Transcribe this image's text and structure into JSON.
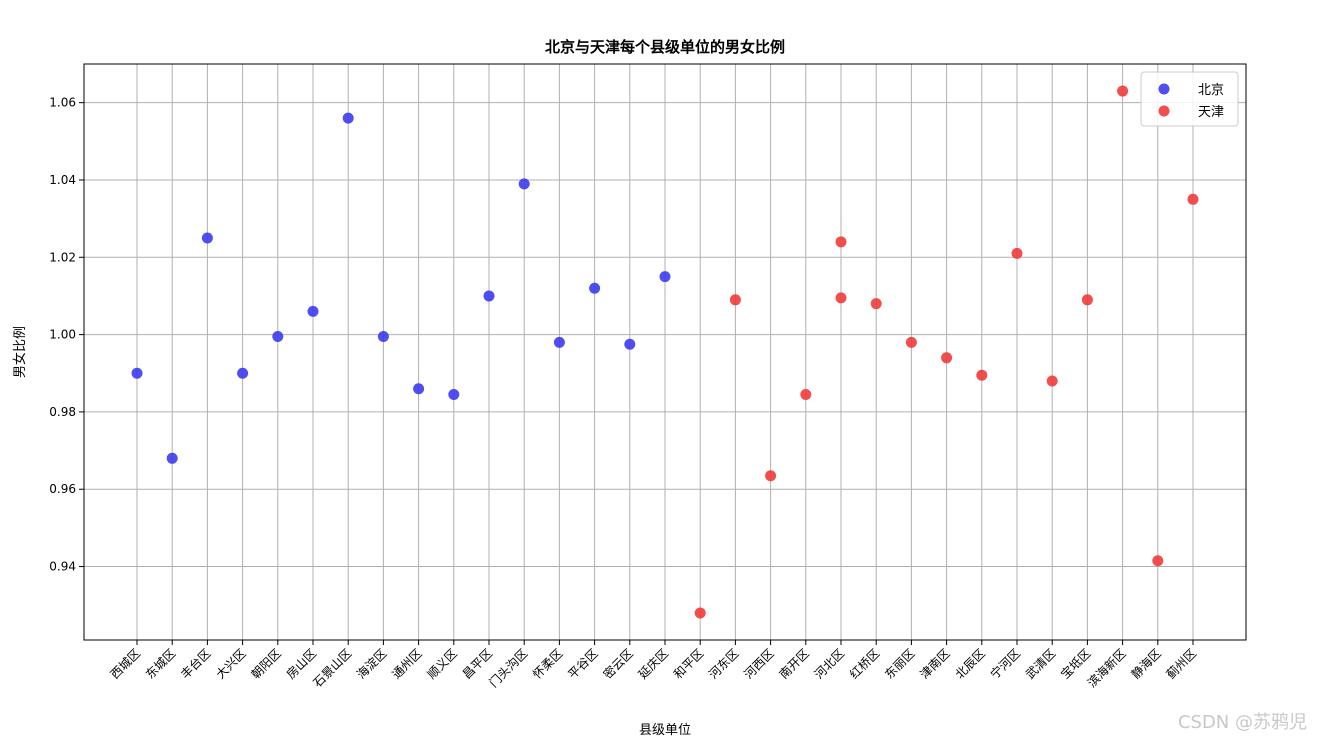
{
  "chart_data": {
    "type": "scatter",
    "title": "北京与天津每个县级单位的男女比例",
    "xlabel": "县级单位",
    "ylabel": "男女比例",
    "ylim": [
      0.921,
      1.07
    ],
    "yticks": [
      "0.94",
      "0.96",
      "0.98",
      "1.00",
      "1.02",
      "1.04",
      "1.06"
    ],
    "grid": true,
    "legend_position": "top-right",
    "categories": [
      "西城区",
      "东城区",
      "丰台区",
      "大兴区",
      "朝阳区",
      "房山区",
      "石景山区",
      "海淀区",
      "通州区",
      "顺义区",
      "昌平区",
      "门头沟区",
      "怀柔区",
      "平谷区",
      "密云区",
      "延庆区",
      "和平区",
      "河东区",
      "河西区",
      "南开区",
      "河北区",
      "红桥区",
      "东丽区",
      "津南区",
      "北辰区",
      "宁河区",
      "武清区",
      "宝坻区",
      "滨海新区",
      "静海区",
      "蓟州区"
    ],
    "series": [
      {
        "name": "北京",
        "color": "#3b3bf0",
        "points": [
          {
            "x": "西城区",
            "y": 0.99
          },
          {
            "x": "东城区",
            "y": 0.968
          },
          {
            "x": "丰台区",
            "y": 1.025
          },
          {
            "x": "大兴区",
            "y": 0.99
          },
          {
            "x": "朝阳区",
            "y": 0.9995
          },
          {
            "x": "房山区",
            "y": 1.006
          },
          {
            "x": "石景山区",
            "y": 1.056
          },
          {
            "x": "海淀区",
            "y": 0.9995
          },
          {
            "x": "通州区",
            "y": 0.986
          },
          {
            "x": "顺义区",
            "y": 0.9845
          },
          {
            "x": "昌平区",
            "y": 1.01
          },
          {
            "x": "门头沟区",
            "y": 1.039
          },
          {
            "x": "怀柔区",
            "y": 0.998
          },
          {
            "x": "平谷区",
            "y": 1.012
          },
          {
            "x": "密云区",
            "y": 0.9975
          },
          {
            "x": "延庆区",
            "y": 1.015
          }
        ]
      },
      {
        "name": "天津",
        "color": "#f03b3b",
        "points": [
          {
            "x": "和平区",
            "y": 0.928
          },
          {
            "x": "河东区",
            "y": 1.009
          },
          {
            "x": "河西区",
            "y": 0.9635
          },
          {
            "x": "南开区",
            "y": 0.9845
          },
          {
            "x": "河北区",
            "y": 1.024
          },
          {
            "x": "河北区",
            "y": 1.0095
          },
          {
            "x": "红桥区",
            "y": 1.008
          },
          {
            "x": "东丽区",
            "y": 0.998
          },
          {
            "x": "津南区",
            "y": 0.994
          },
          {
            "x": "北辰区",
            "y": 0.9895
          },
          {
            "x": "宁河区",
            "y": 1.021
          },
          {
            "x": "武清区",
            "y": 0.988
          },
          {
            "x": "宝坻区",
            "y": 1.009
          },
          {
            "x": "滨海新区",
            "y": 1.063
          },
          {
            "x": "静海区",
            "y": 0.9415
          },
          {
            "x": "蓟州区",
            "y": 1.035
          }
        ]
      }
    ]
  },
  "watermark": "CSDN @苏鸦児"
}
